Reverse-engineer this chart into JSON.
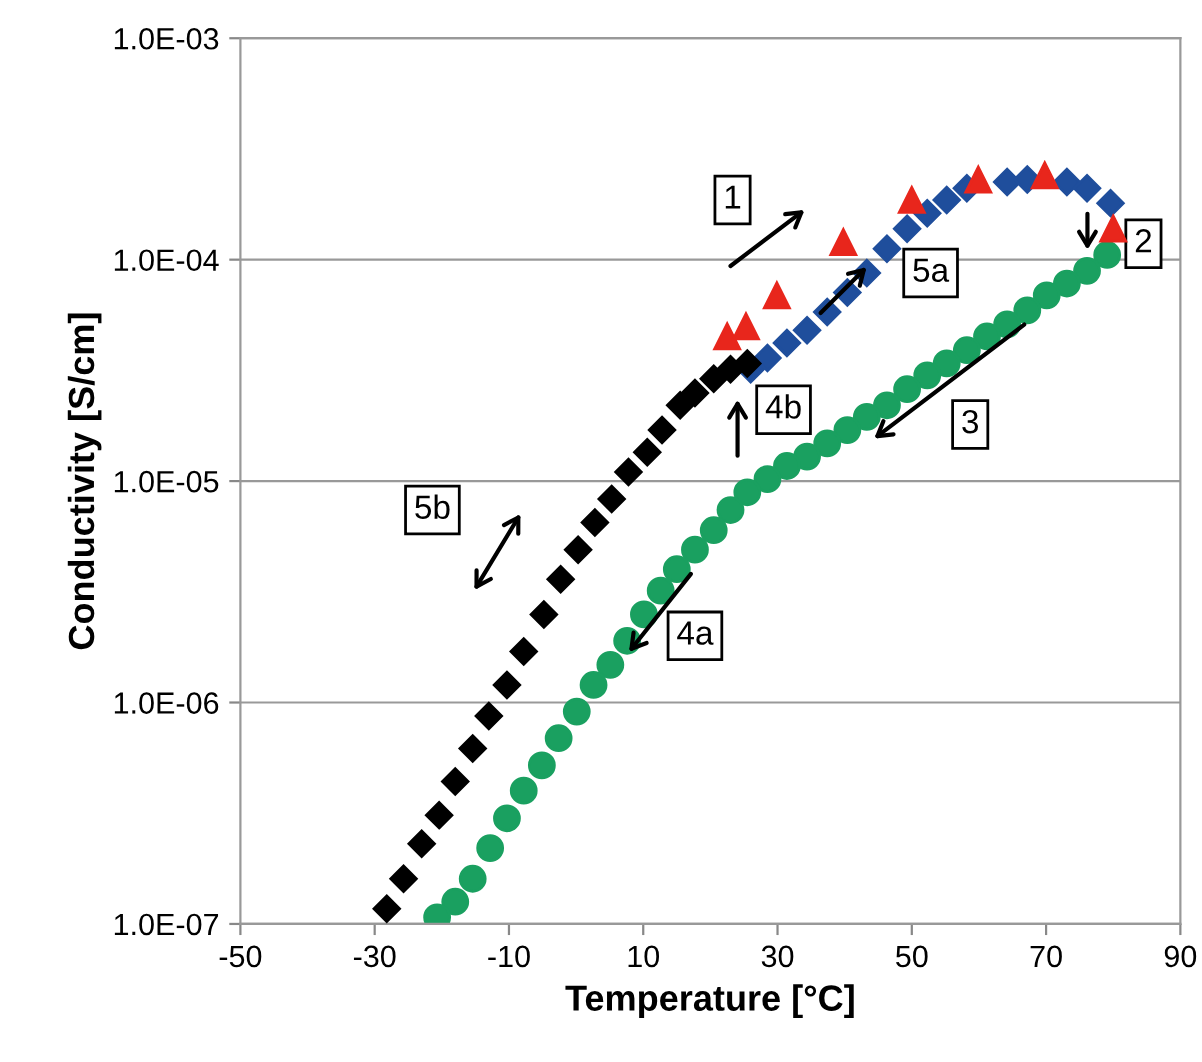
{
  "chart_data": {
    "type": "scatter",
    "xlabel": "Temperature [°C]",
    "ylabel": "Conductivity [S/cm]",
    "log": "y",
    "grid": "y",
    "legend": false,
    "xlim": [
      -50,
      90
    ],
    "xticks": [
      -50,
      -30,
      -10,
      10,
      30,
      50,
      70,
      90
    ],
    "ylim": [
      1e-07,
      0.001
    ],
    "yticks": [
      {
        "value": 1e-07,
        "label": "1.0E-07"
      },
      {
        "value": 1e-06,
        "label": "1.0E-06"
      },
      {
        "value": 1e-05,
        "label": "1.0E-05"
      },
      {
        "value": 0.0001,
        "label": "1.0E-04"
      },
      {
        "value": 0.001,
        "label": "1.0E-03"
      }
    ],
    "series": [
      {
        "color": "#000000",
        "marker": "diamond",
        "x": [
          -28.2,
          -25.7,
          -23,
          -20.4,
          -18,
          -15.4,
          -13,
          -10.3,
          -7.8,
          -4.8,
          -2.3,
          0.3,
          2.8,
          5.3,
          7.8,
          10.6,
          12.8,
          15.5,
          17.7,
          20.5,
          23,
          25.5
        ],
        "values": [
          1.17e-07,
          1.6e-07,
          2.3e-07,
          3.1e-07,
          4.4e-07,
          6.2e-07,
          8.7e-07,
          1.2e-06,
          1.7e-06,
          2.5e-06,
          3.6e-06,
          4.9e-06,
          6.5e-06,
          8.3e-06,
          1.1e-05,
          1.35e-05,
          1.7e-05,
          2.2e-05,
          2.5e-05,
          2.9e-05,
          3.2e-05,
          3.4e-05
        ]
      },
      {
        "color": "#1f4e9c",
        "marker": "diamond",
        "x": [
          26,
          28.5,
          31.4,
          34.4,
          37.4,
          40.4,
          43.3,
          46.3,
          49.3,
          52.3,
          55.2,
          58.2,
          64.2,
          67.2,
          73.1,
          76.1,
          79.6
        ],
        "values": [
          3.2e-05,
          3.6e-05,
          4.2e-05,
          4.8e-05,
          5.8e-05,
          7.1e-05,
          8.7e-05,
          0.000112,
          0.000138,
          0.000162,
          0.000186,
          0.00021,
          0.000224,
          0.00023,
          0.000224,
          0.00021,
          0.00018
        ]
      },
      {
        "color": "#e8261c",
        "marker": "triangle",
        "x": [
          22.5,
          25.3,
          29.9,
          39.8,
          50,
          59.9,
          69.8,
          80
        ],
        "values": [
          4.5e-05,
          5e-05,
          6.9e-05,
          0.00012,
          0.000186,
          0.00023,
          0.00024,
          0.000138
        ]
      },
      {
        "color": "#1aa060",
        "marker": "circle",
        "x": [
          79.1,
          76.1,
          73.1,
          70.1,
          67.2,
          64.2,
          61.2,
          58.2,
          55.2,
          52.3,
          49.3,
          46.3,
          43.3,
          40.4,
          37.4,
          34.4,
          31.4,
          28.5,
          25.5,
          23,
          20.5,
          17.7,
          15,
          12.6,
          10.1,
          7.6,
          5.1,
          2.6,
          0.1,
          -2.6,
          -5.1,
          -7.8,
          -10.3,
          -12.8,
          -15.4,
          -18,
          -20.7
        ],
        "values": [
          0.000105,
          8.9e-05,
          7.8e-05,
          6.9e-05,
          5.9e-05,
          5.1e-05,
          4.5e-05,
          3.9e-05,
          3.4e-05,
          3e-05,
          2.6e-05,
          2.2e-05,
          1.95e-05,
          1.7e-05,
          1.48e-05,
          1.29e-05,
          1.17e-05,
          1.02e-05,
          8.9e-06,
          7.4e-06,
          6e-06,
          4.9e-06,
          4e-06,
          3.2e-06,
          2.5e-06,
          1.9e-06,
          1.48e-06,
          1.2e-06,
          9.1e-07,
          6.9e-07,
          5.2e-07,
          4e-07,
          3e-07,
          2.2e-07,
          1.6e-07,
          1.26e-07,
          1.07e-07
        ]
      }
    ],
    "annotations": [
      {
        "text": "1",
        "x": 23.3,
        "y": 0.000186
      },
      {
        "text": "2",
        "x": 84.5,
        "y": 0.000118
      },
      {
        "text": "3",
        "x": 58.7,
        "y": 1.8e-05
      },
      {
        "text": "4a",
        "x": 17.7,
        "y": 2e-06
      },
      {
        "text": "4b",
        "x": 30.9,
        "y": 2.1e-05
      },
      {
        "text": "5a",
        "x": 52.8,
        "y": 8.7e-05
      },
      {
        "text": "5b",
        "x": -21.4,
        "y": 7.4e-06
      }
    ]
  }
}
